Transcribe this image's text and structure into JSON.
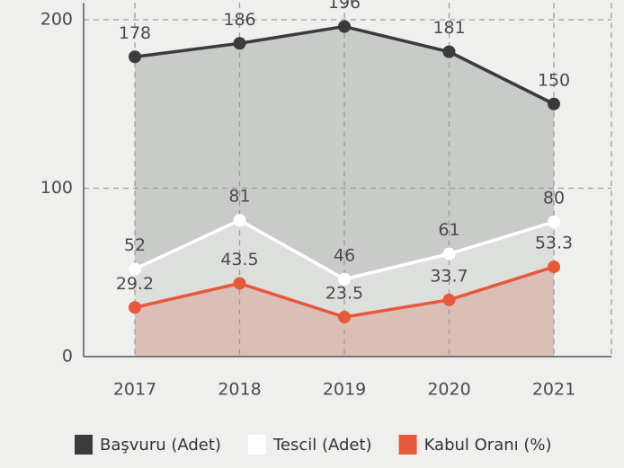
{
  "chart_data": {
    "type": "line",
    "categories": [
      "2017",
      "2018",
      "2019",
      "2020",
      "2021"
    ],
    "series": [
      {
        "name": "Başvuru (Adet)",
        "color": "#3a3c3b",
        "area_color": "#c8cbc8",
        "values": [
          178,
          186,
          196,
          181,
          150
        ]
      },
      {
        "name": "Tescil (Adet)",
        "color": "#ffffff",
        "area_color": "#dcdfdb",
        "values": [
          52,
          81,
          46,
          61,
          80
        ]
      },
      {
        "name": "Kabul Oranı (%)",
        "color": "#e8583c",
        "area_color": "#dbbfb6",
        "values": [
          29.2,
          43.5,
          23.5,
          33.7,
          53.3
        ]
      }
    ],
    "ylim": [
      0,
      210
    ],
    "yticks": [
      0,
      100,
      200
    ],
    "grid": true,
    "area": true,
    "legend": "bottom"
  }
}
